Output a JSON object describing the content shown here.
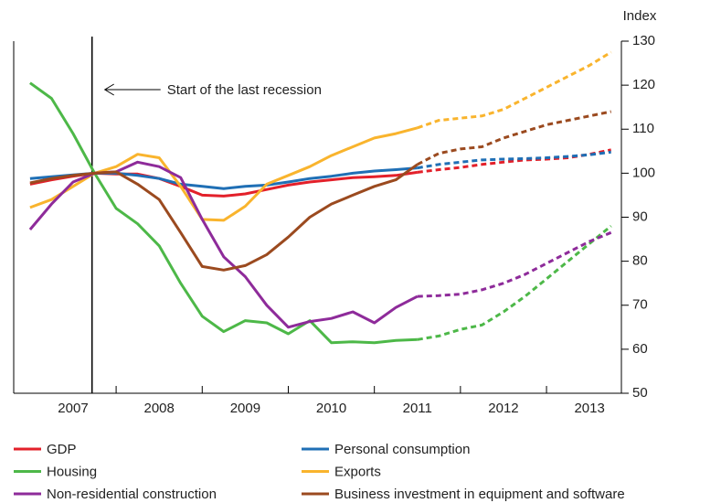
{
  "chart_data": {
    "type": "line",
    "y_axis_label": "Index",
    "annotation": {
      "text": "Start of the last recession",
      "x": 2007.72
    },
    "dashed_from_x": 2011.5,
    "x": [
      2007,
      2007.25,
      2007.5,
      2007.75,
      2008,
      2008.25,
      2008.5,
      2008.75,
      2009,
      2009.25,
      2009.5,
      2009.75,
      2010,
      2010.25,
      2010.5,
      2010.75,
      2011,
      2011.25,
      2011.5,
      2011.75,
      2012,
      2012.25,
      2012.5,
      2012.75,
      2013,
      2013.25,
      2013.5,
      2013.75
    ],
    "xlim": [
      2006.81,
      2013.87
    ],
    "xticks": [
      {
        "value": 2007.5,
        "label": "2007"
      },
      {
        "value": 2008.5,
        "label": "2008"
      },
      {
        "value": 2009.5,
        "label": "2009"
      },
      {
        "value": 2010.5,
        "label": "2010"
      },
      {
        "value": 2011.5,
        "label": "2011"
      },
      {
        "value": 2012.5,
        "label": "2012"
      },
      {
        "value": 2013.5,
        "label": "2013"
      }
    ],
    "ylim": [
      50,
      130
    ],
    "yticks": [
      50,
      60,
      70,
      80,
      90,
      100,
      110,
      120,
      130
    ],
    "series": [
      {
        "name": "GDP",
        "color": "#e3202a",
        "values": [
          97.5,
          98.5,
          99.3,
          100,
          99.8,
          99.8,
          98.8,
          97,
          95,
          94.8,
          95.3,
          96.3,
          97.3,
          98,
          98.5,
          99,
          99.2,
          99.5,
          100.2,
          100.8,
          101.3,
          102,
          102.5,
          103,
          103.2,
          103.5,
          104.3,
          105.3
        ]
      },
      {
        "name": "Personal consumption",
        "color": "#1f6fb5",
        "values": [
          98.8,
          99.2,
          99.6,
          100,
          100,
          99.5,
          98.8,
          97.5,
          97,
          96.5,
          97,
          97.3,
          98,
          98.8,
          99.3,
          100,
          100.5,
          100.8,
          101.2,
          102,
          102.5,
          103,
          103.2,
          103.3,
          103.5,
          103.8,
          104.2,
          104.8
        ]
      },
      {
        "name": "Housing",
        "color": "#4db848",
        "values": [
          120.5,
          117,
          109,
          100,
          92,
          88.5,
          83.5,
          75,
          67.5,
          64,
          66.5,
          66,
          63.5,
          66.5,
          61.5,
          61.7,
          61.5,
          62,
          62.2,
          63,
          64.5,
          65.5,
          68.5,
          72,
          76,
          80,
          84,
          88
        ]
      },
      {
        "name": "Exports",
        "color": "#f9b42d",
        "values": [
          92.2,
          94,
          97,
          100,
          101.5,
          104.3,
          103.5,
          97,
          89.5,
          89.3,
          92.5,
          97.5,
          99.5,
          101.5,
          104,
          106,
          108,
          109,
          110.3,
          112,
          112.5,
          113,
          114.5,
          117,
          119.5,
          122,
          124.5,
          127.5
        ]
      },
      {
        "name": "Non-residential construction",
        "color": "#8e2b9a",
        "values": [
          87.2,
          93,
          98,
          100,
          100.3,
          102.5,
          101.5,
          99,
          89.5,
          81,
          76.5,
          70,
          65,
          66.3,
          67,
          68.5,
          66,
          69.5,
          72,
          72.2,
          72.5,
          73.5,
          75,
          77,
          79.5,
          82,
          84.5,
          86.5
        ]
      },
      {
        "name": "Business investment in equipment and software",
        "color": "#9b4a1f",
        "values": [
          97.8,
          98.8,
          99.5,
          100,
          100.3,
          97.5,
          94,
          86.5,
          78.8,
          78,
          79,
          81.5,
          85.5,
          90,
          93,
          95,
          97,
          98.5,
          102,
          104.5,
          105.5,
          106,
          108,
          109.5,
          111,
          112,
          113,
          114
        ]
      }
    ]
  }
}
